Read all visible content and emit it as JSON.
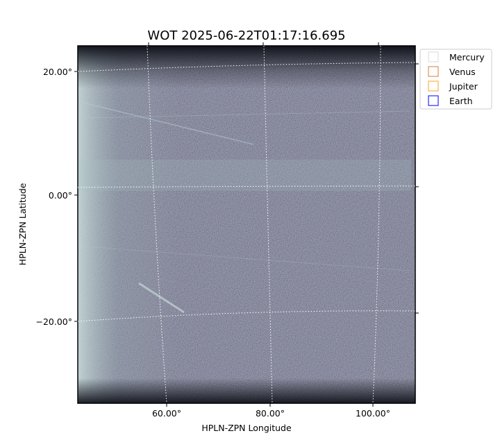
{
  "chart_data": {
    "type": "heatmap",
    "title": "WOT 2025-06-22T01:17:16.695",
    "xlabel": "HPLN-ZPN Longitude",
    "ylabel": "HPLN-ZPN Latitude",
    "x_ticks": [
      "60.00°",
      "80.00°",
      "100.00°"
    ],
    "y_ticks": [
      "20.00°",
      "0.00°",
      "−20.00°"
    ],
    "grid": true,
    "colormap": "bone",
    "legend": {
      "placement": "outside-top-right",
      "entries": [
        {
          "name": "Mercury",
          "color": "#d9d9d9"
        },
        {
          "name": "Venus",
          "color": "#d2803a"
        },
        {
          "name": "Jupiter",
          "color": "#f5a623"
        },
        {
          "name": "Earth",
          "color": "#0000ff"
        }
      ]
    }
  }
}
